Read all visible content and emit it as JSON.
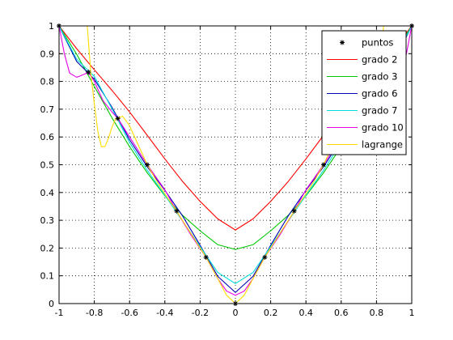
{
  "chart_data": {
    "type": "line",
    "title": "",
    "xlabel": "",
    "ylabel": "",
    "xlim": [
      -1,
      1
    ],
    "ylim": [
      0,
      1
    ],
    "grid": true,
    "grid_style": "dotted",
    "legend_position": "top-right",
    "x_ticks": [
      "-1",
      "-0.8",
      "-0.6",
      "-0.4",
      "-0.2",
      "0",
      "0.2",
      "0.4",
      "0.6",
      "0.8",
      "1"
    ],
    "y_ticks": [
      "0",
      "0.1",
      "0.2",
      "0.3",
      "0.4",
      "0.5",
      "0.6",
      "0.7",
      "0.8",
      "0.9",
      "1"
    ],
    "points": {
      "name": "puntos",
      "marker": "*",
      "color": "#000000",
      "x": [
        -1,
        -0.8333,
        -0.6667,
        -0.5,
        -0.3333,
        -0.1667,
        0,
        0.1667,
        0.3333,
        0.5,
        0.6667,
        0.8333,
        1
      ],
      "y": [
        1,
        0.8333,
        0.6667,
        0.5,
        0.3333,
        0.1667,
        0,
        0.1667,
        0.3333,
        0.5,
        0.6667,
        0.8333,
        1
      ]
    },
    "series": [
      {
        "name": "grado 2",
        "color": "#ff0000",
        "x": [
          -1,
          -0.9,
          -0.8,
          -0.7,
          -0.6,
          -0.5,
          -0.4,
          -0.3,
          -0.2,
          -0.1,
          0,
          0.1,
          0.2,
          0.3,
          0.4,
          0.5,
          0.6,
          0.7,
          0.8,
          0.9,
          1
        ],
        "y": [
          1.0,
          0.918,
          0.842,
          0.768,
          0.69,
          0.606,
          0.521,
          0.44,
          0.368,
          0.305,
          0.265,
          0.305,
          0.368,
          0.44,
          0.521,
          0.606,
          0.69,
          0.768,
          0.842,
          0.918,
          1.0
        ]
      },
      {
        "name": "grado 3",
        "color": "#00c800",
        "x": [
          -1,
          -0.9,
          -0.8,
          -0.7,
          -0.6,
          -0.5,
          -0.4,
          -0.3,
          -0.2,
          -0.1,
          0,
          0.1,
          0.2,
          0.3,
          0.4,
          0.5,
          0.6,
          0.7,
          0.8,
          0.9,
          1
        ],
        "y": [
          1.0,
          0.898,
          0.782,
          0.669,
          0.565,
          0.471,
          0.388,
          0.318,
          0.262,
          0.212,
          0.195,
          0.212,
          0.262,
          0.318,
          0.388,
          0.471,
          0.565,
          0.669,
          0.782,
          0.898,
          1.0
        ]
      },
      {
        "name": "grado 6",
        "color": "#0000b4",
        "x": [
          -1,
          -0.9,
          -0.8,
          -0.7,
          -0.6,
          -0.5,
          -0.4,
          -0.3,
          -0.2,
          -0.1,
          0,
          0.1,
          0.2,
          0.3,
          0.4,
          0.5,
          0.6,
          0.7,
          0.8,
          0.9,
          1
        ],
        "y": [
          1.0,
          0.872,
          0.808,
          0.707,
          0.59,
          0.493,
          0.408,
          0.316,
          0.21,
          0.098,
          0.04,
          0.098,
          0.21,
          0.316,
          0.408,
          0.493,
          0.59,
          0.707,
          0.808,
          0.872,
          1.0
        ]
      },
      {
        "name": "grado 7",
        "color": "#00dcdc",
        "x": [
          -1,
          -0.9,
          -0.8,
          -0.7,
          -0.6,
          -0.5,
          -0.4,
          -0.3,
          -0.2,
          -0.1,
          0,
          0.1,
          0.2,
          0.3,
          0.4,
          0.5,
          0.6,
          0.7,
          0.8,
          0.9,
          1
        ],
        "y": [
          1.0,
          0.88,
          0.818,
          0.702,
          0.58,
          0.48,
          0.39,
          0.298,
          0.205,
          0.112,
          0.072,
          0.112,
          0.205,
          0.298,
          0.39,
          0.48,
          0.58,
          0.702,
          0.818,
          0.88,
          1.0
        ]
      },
      {
        "name": "grado 10",
        "color": "#e600e6",
        "x": [
          -1,
          -0.97,
          -0.94,
          -0.9,
          -0.86,
          -0.8333,
          -0.8,
          -0.75,
          -0.7,
          -0.6667,
          -0.6,
          -0.5,
          -0.4,
          -0.3333,
          -0.25,
          -0.1667,
          -0.1,
          -0.05,
          0,
          0.05,
          0.1,
          0.1667,
          0.25,
          0.3333,
          0.4,
          0.5,
          0.6,
          0.6667,
          0.7,
          0.75,
          0.8,
          0.8333,
          0.86,
          0.9,
          0.94,
          0.97,
          1
        ],
        "y": [
          1.0,
          0.9,
          0.83,
          0.815,
          0.825,
          0.833,
          0.8,
          0.73,
          0.69,
          0.667,
          0.6,
          0.5,
          0.41,
          0.333,
          0.245,
          0.167,
          0.09,
          0.045,
          0.03,
          0.045,
          0.09,
          0.167,
          0.245,
          0.333,
          0.41,
          0.5,
          0.6,
          0.667,
          0.69,
          0.73,
          0.8,
          0.833,
          0.825,
          0.815,
          0.83,
          0.9,
          1.0
        ]
      },
      {
        "name": "lagrange",
        "color": "#ffdc00",
        "x": [
          -0.84,
          -0.82,
          -0.8,
          -0.78,
          -0.76,
          -0.74,
          -0.72,
          -0.7,
          -0.68,
          -0.6667,
          -0.64,
          -0.6,
          -0.55,
          -0.5,
          -0.45,
          -0.4,
          -0.3333,
          -0.25,
          -0.1667,
          -0.1,
          -0.05,
          0,
          0.05,
          0.1,
          0.1667,
          0.25,
          0.3333,
          0.4,
          0.45,
          0.5,
          0.55,
          0.6,
          0.64,
          0.6667,
          0.68,
          0.7,
          0.72,
          0.74,
          0.76,
          0.78,
          0.8,
          0.82,
          0.84
        ],
        "y": [
          1.0,
          0.83,
          0.72,
          0.62,
          0.565,
          0.565,
          0.595,
          0.635,
          0.665,
          0.667,
          0.675,
          0.64,
          0.57,
          0.5,
          0.445,
          0.395,
          0.333,
          0.25,
          0.167,
          0.09,
          0.03,
          0.0,
          0.03,
          0.09,
          0.167,
          0.25,
          0.333,
          0.395,
          0.445,
          0.5,
          0.57,
          0.64,
          0.675,
          0.667,
          0.665,
          0.635,
          0.595,
          0.565,
          0.565,
          0.62,
          0.72,
          0.83,
          1.0
        ]
      }
    ]
  }
}
